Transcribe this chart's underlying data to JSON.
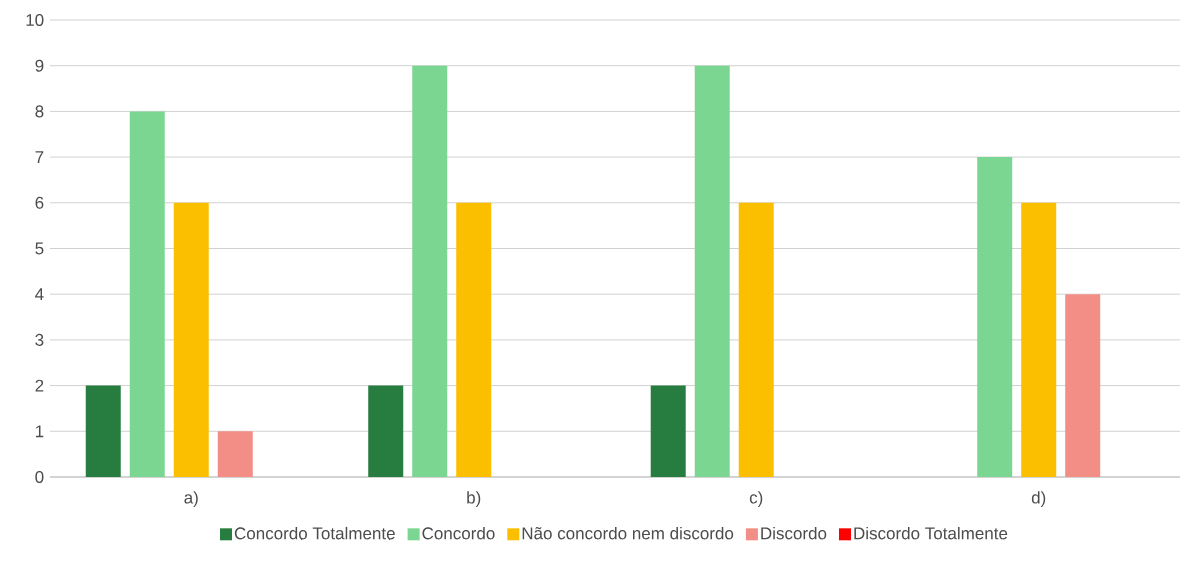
{
  "chart_data": {
    "type": "bar",
    "categories": [
      "a)",
      "b)",
      "c)",
      "d)"
    ],
    "series": [
      {
        "name": "Concordo Totalmente",
        "color": "#277c3f",
        "values": [
          2,
          2,
          2,
          0
        ]
      },
      {
        "name": "Concordo",
        "color": "#7bd691",
        "values": [
          8,
          9,
          9,
          7
        ]
      },
      {
        "name": "Não concordo nem discordo",
        "color": "#fbbf00",
        "values": [
          6,
          6,
          6,
          6
        ]
      },
      {
        "name": "Discordo",
        "color": "#f28e86",
        "values": [
          1,
          0,
          0,
          4
        ]
      },
      {
        "name": "Discordo Totalmente",
        "color": "#ff0000",
        "values": [
          0,
          0,
          0,
          0
        ]
      }
    ],
    "ylim": [
      0,
      10
    ],
    "yticks": [
      0,
      1,
      2,
      3,
      4,
      5,
      6,
      7,
      8,
      9,
      10
    ],
    "grid": "y",
    "legend": "bottom"
  }
}
